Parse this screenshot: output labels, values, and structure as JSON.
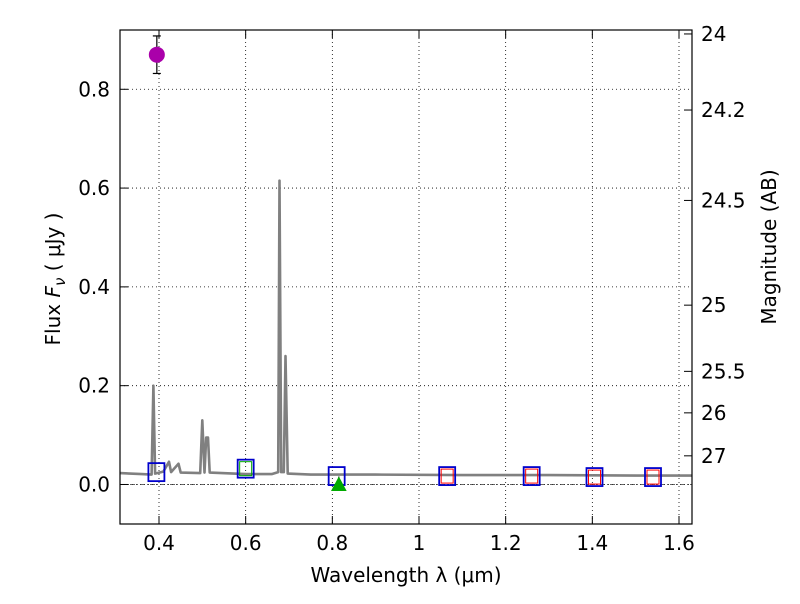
{
  "chart_data": {
    "type": "line",
    "title": "",
    "xlabel": "Wavelength  λ (μm)",
    "ylabel": "Flux  F_ν  ( μJy )",
    "ylabel_parts": {
      "prefix": "Flux  ",
      "var": "F",
      "sub": "ν",
      "suffix": "  ( μJy )"
    },
    "y2label": "Magnitude (AB)",
    "xlim": [
      0.31,
      1.63
    ],
    "ylim": [
      -0.08,
      0.92
    ],
    "grid": true,
    "x_ticks": [
      0.4,
      0.6,
      0.8,
      1.0,
      1.2,
      1.4,
      1.6
    ],
    "x_tick_labels": [
      "0.4",
      "0.6",
      "0.8",
      "1",
      "1.2",
      "1.4",
      "1.6"
    ],
    "y_ticks": [
      0.0,
      0.2,
      0.4,
      0.6,
      0.8
    ],
    "y_tick_labels": [
      "0.0",
      "0.2",
      "0.4",
      "0.6",
      "0.8"
    ],
    "mag_ticks": [
      {
        "label": "24",
        "flux": 0.912
      },
      {
        "label": "24.2",
        "flux": 0.758
      },
      {
        "label": "24.5",
        "flux": 0.575
      },
      {
        "label": "25",
        "flux": 0.363
      },
      {
        "label": "25.5",
        "flux": 0.229
      },
      {
        "label": "26",
        "flux": 0.145
      },
      {
        "label": "27",
        "flux": 0.058
      }
    ],
    "sed_model": {
      "name": "SED model",
      "color": "#808080",
      "points": [
        [
          0.31,
          0.023
        ],
        [
          0.36,
          0.021
        ],
        [
          0.383,
          0.02
        ],
        [
          0.387,
          0.2
        ],
        [
          0.391,
          0.022
        ],
        [
          0.41,
          0.026
        ],
        [
          0.423,
          0.046
        ],
        [
          0.428,
          0.025
        ],
        [
          0.445,
          0.042
        ],
        [
          0.45,
          0.024
        ],
        [
          0.495,
          0.023
        ],
        [
          0.5,
          0.13
        ],
        [
          0.505,
          0.024
        ],
        [
          0.509,
          0.095
        ],
        [
          0.513,
          0.095
        ],
        [
          0.517,
          0.024
        ],
        [
          0.6,
          0.021
        ],
        [
          0.66,
          0.021
        ],
        [
          0.675,
          0.025
        ],
        [
          0.678,
          0.615
        ],
        [
          0.682,
          0.025
        ],
        [
          0.688,
          0.025
        ],
        [
          0.692,
          0.26
        ],
        [
          0.697,
          0.022
        ],
        [
          0.75,
          0.02
        ],
        [
          0.9,
          0.02
        ],
        [
          1.1,
          0.019
        ],
        [
          1.3,
          0.019
        ],
        [
          1.5,
          0.018
        ],
        [
          1.63,
          0.018
        ]
      ]
    },
    "photometry": [
      {
        "name": "observed-point",
        "x": 0.395,
        "y": 0.87,
        "yerr": 0.038,
        "color": "#aa00aa",
        "marker": "circle"
      },
      {
        "name": "upper-limit",
        "x": 0.815,
        "y": 0.0,
        "color": "#00aa00",
        "marker": "triangle"
      }
    ],
    "model_boxes": [
      {
        "x": 0.394,
        "y": 0.025,
        "color": "#0000cc"
      },
      {
        "x": 0.6,
        "y": 0.032,
        "color": "#0000cc"
      },
      {
        "x": 0.81,
        "y": 0.017,
        "color": "#0000cc"
      },
      {
        "x": 1.065,
        "y": 0.017,
        "color": "#0000cc"
      },
      {
        "x": 1.26,
        "y": 0.017,
        "color": "#0000cc"
      },
      {
        "x": 1.405,
        "y": 0.015,
        "color": "#0000cc"
      },
      {
        "x": 1.54,
        "y": 0.015,
        "color": "#0000cc"
      }
    ],
    "inner_boxes": [
      {
        "x": 0.6,
        "y": 0.032,
        "color": "#00aa00"
      },
      {
        "x": 1.065,
        "y": 0.017,
        "color": "#ff0000"
      },
      {
        "x": 1.26,
        "y": 0.017,
        "color": "#ff0000"
      },
      {
        "x": 1.405,
        "y": 0.015,
        "color": "#ff0000"
      },
      {
        "x": 1.54,
        "y": 0.015,
        "color": "#ff0000"
      }
    ]
  }
}
